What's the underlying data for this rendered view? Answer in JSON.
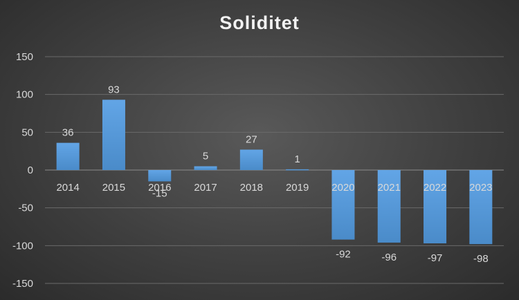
{
  "chart_data": {
    "type": "bar",
    "title": "Soliditet",
    "categories": [
      "2014",
      "2015",
      "2016",
      "2017",
      "2018",
      "2019",
      "2020",
      "2021",
      "2022",
      "2023"
    ],
    "values": [
      36,
      93,
      -15,
      5,
      27,
      1,
      -92,
      -96,
      -97,
      -98
    ],
    "data_labels": [
      "36",
      "93",
      "-15",
      "5",
      "27",
      "1",
      "-92",
      "-96",
      "-97",
      "-98"
    ],
    "yticks": [
      150,
      100,
      50,
      0,
      -50,
      -100,
      -150
    ],
    "ylim": [
      -150,
      150
    ],
    "xlabel": "",
    "ylabel": "",
    "grid": true,
    "legend": "none",
    "colors": {
      "bar": "#5b9bd5",
      "gridline": "#6a6a6a",
      "text": "#d9d9d9"
    }
  }
}
